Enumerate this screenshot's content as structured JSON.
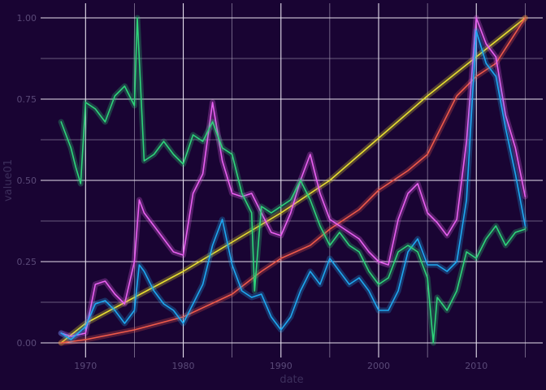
{
  "chart_data": {
    "type": "line",
    "title": "",
    "xlabel": "date",
    "ylabel": "value01",
    "x_ticks": [
      1970,
      1980,
      1990,
      2000,
      2010
    ],
    "y_ticks": [
      0.0,
      0.25,
      0.5,
      0.75,
      1.0
    ],
    "y_tick_labels": [
      "0.00",
      "0.25",
      "0.50",
      "0.75",
      "1.00"
    ],
    "xlim": [
      1965.4,
      2016.8
    ],
    "ylim": [
      -0.045,
      1.045
    ],
    "grid": true,
    "legend": "none",
    "series": [
      {
        "color": "#e8e030",
        "x": [
          1967.5,
          1970,
          1975,
          1980,
          1985,
          1990,
          1995,
          2000,
          2005,
          2010,
          2015
        ],
        "values": [
          0.0,
          0.06,
          0.14,
          0.22,
          0.31,
          0.4,
          0.5,
          0.63,
          0.76,
          0.88,
          1.0
        ]
      },
      {
        "color": "#f05a4a",
        "x": [
          1967.5,
          1970,
          1975,
          1980,
          1985,
          1988,
          1990,
          1993,
          1995,
          1998,
          2000,
          2003,
          2005,
          2008,
          2010,
          2012,
          2015
        ],
        "values": [
          0.0,
          0.01,
          0.04,
          0.08,
          0.15,
          0.22,
          0.26,
          0.3,
          0.35,
          0.41,
          0.47,
          0.53,
          0.58,
          0.76,
          0.82,
          0.86,
          1.0
        ]
      },
      {
        "color": "#e860f0",
        "x": [
          1967.5,
          1968.5,
          1970,
          1971,
          1972,
          1973,
          1974,
          1975,
          1975.5,
          1976,
          1977,
          1978,
          1979,
          1980,
          1981,
          1982,
          1983,
          1984,
          1985,
          1986,
          1987,
          1988,
          1989,
          1990,
          1991,
          1992,
          1993,
          1994,
          1995,
          1996,
          1997,
          1998,
          1999,
          2000,
          2001,
          2002,
          2003,
          2004,
          2005,
          2006,
          2007,
          2008,
          2009,
          2010,
          2011,
          2012,
          2013,
          2014,
          2015
        ],
        "values": [
          0.03,
          0.02,
          0.03,
          0.18,
          0.19,
          0.15,
          0.12,
          0.25,
          0.44,
          0.4,
          0.36,
          0.32,
          0.28,
          0.27,
          0.46,
          0.52,
          0.74,
          0.56,
          0.46,
          0.45,
          0.46,
          0.4,
          0.34,
          0.33,
          0.4,
          0.5,
          0.58,
          0.46,
          0.38,
          0.36,
          0.34,
          0.32,
          0.28,
          0.25,
          0.24,
          0.38,
          0.46,
          0.49,
          0.4,
          0.37,
          0.33,
          0.38,
          0.62,
          1.0,
          0.92,
          0.88,
          0.7,
          0.6,
          0.45
        ]
      },
      {
        "color": "#1ea8f0",
        "x": [
          1967.5,
          1968.5,
          1970,
          1971,
          1972,
          1973,
          1974,
          1975,
          1975.5,
          1976,
          1977,
          1978,
          1979,
          1980,
          1981,
          1982,
          1983,
          1984,
          1985,
          1986,
          1987,
          1988,
          1989,
          1990,
          1991,
          1992,
          1993,
          1994,
          1995,
          1996,
          1997,
          1998,
          1999,
          2000,
          2001,
          2002,
          2003,
          2004,
          2005,
          2006,
          2007,
          2008,
          2009,
          2010,
          2011,
          2012,
          2013,
          2014,
          2015
        ],
        "values": [
          0.03,
          0.01,
          0.05,
          0.12,
          0.13,
          0.1,
          0.06,
          0.1,
          0.24,
          0.22,
          0.16,
          0.12,
          0.1,
          0.06,
          0.12,
          0.18,
          0.3,
          0.38,
          0.24,
          0.16,
          0.14,
          0.15,
          0.08,
          0.04,
          0.08,
          0.16,
          0.22,
          0.18,
          0.26,
          0.22,
          0.18,
          0.2,
          0.16,
          0.1,
          0.1,
          0.16,
          0.28,
          0.32,
          0.24,
          0.24,
          0.22,
          0.25,
          0.44,
          0.96,
          0.86,
          0.82,
          0.66,
          0.52,
          0.36
        ]
      },
      {
        "color": "#2ed47a",
        "x": [
          1967.5,
          1968.5,
          1969,
          1969.5,
          1970,
          1971,
          1972,
          1973,
          1974,
          1975,
          1975.3,
          1976,
          1977,
          1978,
          1979,
          1980,
          1981,
          1982,
          1983,
          1984,
          1985,
          1986,
          1987,
          1987.3,
          1988,
          1989,
          1990,
          1991,
          1992,
          1993,
          1994,
          1995,
          1996,
          1997,
          1998,
          1999,
          2000,
          2001,
          2002,
          2003,
          2004,
          2005,
          2005.6,
          2006,
          2007,
          2008,
          2009,
          2010,
          2011,
          2012,
          2013,
          2014,
          2015
        ],
        "values": [
          0.68,
          0.6,
          0.54,
          0.49,
          0.74,
          0.72,
          0.68,
          0.76,
          0.79,
          0.73,
          1.0,
          0.56,
          0.58,
          0.62,
          0.58,
          0.55,
          0.64,
          0.62,
          0.68,
          0.6,
          0.58,
          0.46,
          0.4,
          0.16,
          0.42,
          0.4,
          0.42,
          0.44,
          0.5,
          0.44,
          0.36,
          0.3,
          0.34,
          0.3,
          0.28,
          0.22,
          0.18,
          0.2,
          0.28,
          0.3,
          0.28,
          0.2,
          0.0,
          0.14,
          0.1,
          0.16,
          0.28,
          0.26,
          0.32,
          0.36,
          0.3,
          0.34,
          0.35
        ]
      }
    ]
  }
}
